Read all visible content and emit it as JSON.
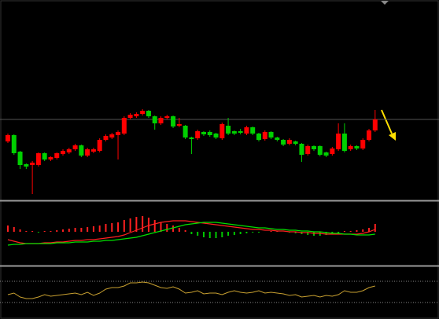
{
  "chart_data": [
    {
      "type": "candlestick",
      "ylim": [
        0,
        255
      ],
      "hline": 103,
      "up_color": "#ff0000",
      "down_color": "#00d000",
      "hline_color": "#555555",
      "open": [
        75,
        83,
        62,
        46,
        45,
        45,
        60,
        52,
        54,
        59,
        61,
        65,
        70,
        57,
        62,
        63,
        77,
        80,
        83,
        85,
        105,
        107,
        110,
        114,
        107,
        98,
        105,
        107,
        95,
        95,
        80,
        79,
        87,
        87,
        85,
        79,
        95,
        88,
        88,
        85,
        93,
        85,
        78,
        87,
        80,
        77,
        72,
        75,
        72,
        59,
        69,
        69,
        61,
        59,
        65,
        85,
        65,
        69,
        66,
        77,
        89
      ],
      "high": [
        85,
        84,
        63,
        47,
        50,
        61,
        61,
        56,
        61,
        65,
        67,
        72,
        71,
        67,
        67,
        79,
        84,
        86,
        89,
        107,
        111,
        112,
        116,
        115,
        108,
        107,
        109,
        108,
        105,
        96,
        81,
        90,
        88,
        89,
        86,
        99,
        105,
        89,
        91,
        95,
        94,
        86,
        89,
        88,
        81,
        78,
        79,
        76,
        73,
        71,
        70,
        70,
        62,
        68,
        98,
        98,
        71,
        70,
        79,
        91,
        115
      ],
      "low": [
        73,
        58,
        40,
        40,
        8,
        43,
        50,
        50,
        52,
        57,
        59,
        63,
        55,
        55,
        60,
        61,
        75,
        78,
        52,
        83,
        103,
        105,
        108,
        105,
        90,
        96,
        103,
        92,
        93,
        78,
        59,
        77,
        82,
        81,
        78,
        77,
        83,
        83,
        84,
        83,
        83,
        75,
        76,
        78,
        75,
        69,
        70,
        70,
        49,
        57,
        63,
        56,
        55,
        57,
        63,
        61,
        63,
        64,
        64,
        75,
        87
      ],
      "close": [
        83,
        60,
        45,
        43,
        48,
        60,
        52,
        55,
        60,
        63,
        65,
        70,
        57,
        65,
        65,
        77,
        82,
        84,
        87,
        105,
        109,
        110,
        114,
        107,
        98,
        105,
        107,
        94,
        97,
        80,
        78,
        88,
        84,
        83,
        80,
        97,
        85,
        85,
        86,
        93,
        85,
        77,
        87,
        80,
        77,
        71,
        77,
        72,
        58,
        69,
        65,
        58,
        57,
        66,
        85,
        63,
        69,
        66,
        77,
        89,
        103
      ]
    },
    {
      "type": "macd",
      "ylim": [
        -43,
        38
      ],
      "up_color": "#ff2020",
      "down_color": "#00c800",
      "histogram": [
        8,
        6,
        3,
        1,
        1,
        -1,
        1,
        1,
        2,
        3,
        4,
        5,
        5,
        6,
        7,
        8,
        10,
        11,
        12,
        15,
        17,
        19,
        20,
        18,
        15,
        12,
        10,
        8,
        5,
        2,
        -3,
        -5,
        -7,
        -8,
        -8,
        -7,
        -5,
        -4,
        -3,
        -2,
        -1,
        -1,
        0,
        1,
        1,
        0,
        -1,
        -2,
        -3,
        -4,
        -5,
        -5,
        -4,
        -3,
        -2,
        1,
        1,
        2,
        3,
        5,
        10
      ],
      "series": [
        {
          "color": "#ff2020",
          "values": [
            -10,
            -12,
            -14,
            -15,
            -15,
            -15,
            -14,
            -14,
            -13,
            -13,
            -12,
            -11,
            -11,
            -10,
            -10,
            -9,
            -8,
            -7,
            -6,
            -4,
            -1,
            2,
            5,
            8,
            10,
            12,
            13,
            14,
            14,
            14,
            13,
            12,
            11,
            10,
            9,
            8,
            7,
            6,
            5,
            4,
            3,
            3,
            2,
            2,
            1,
            1,
            0,
            0,
            -1,
            -1,
            -2,
            -2,
            -3,
            -3,
            -3,
            -3,
            -3,
            -3,
            -2,
            0,
            3
          ]
        },
        {
          "color": "#00e000",
          "values": [
            -17,
            -16,
            -16,
            -15,
            -15,
            -15,
            -15,
            -15,
            -14,
            -14,
            -14,
            -13,
            -13,
            -13,
            -12,
            -12,
            -11,
            -11,
            -10,
            -9,
            -8,
            -7,
            -5,
            -3,
            -1,
            1,
            3,
            5,
            7,
            9,
            10,
            11,
            12,
            12,
            12,
            11,
            10,
            9,
            8,
            7,
            6,
            5,
            5,
            4,
            3,
            3,
            2,
            2,
            1,
            1,
            0,
            0,
            -1,
            -2,
            -2,
            -3,
            -3,
            -4,
            -4,
            -4,
            -3
          ]
        }
      ]
    },
    {
      "type": "line",
      "ylim": [
        0,
        66
      ],
      "hlines": [
        48,
        21
      ],
      "color": "#c8a030",
      "hline_color": "#888888",
      "values": [
        31,
        33,
        28,
        26,
        26,
        28,
        31,
        29,
        30,
        31,
        32,
        33,
        31,
        34,
        30,
        33,
        38,
        40,
        40,
        42,
        46,
        46,
        47,
        46,
        43,
        40,
        39,
        41,
        38,
        33,
        34,
        36,
        32,
        33,
        33,
        31,
        34,
        36,
        34,
        33,
        34,
        36,
        33,
        34,
        33,
        32,
        30,
        31,
        28,
        29,
        30,
        28,
        30,
        29,
        31,
        36,
        34,
        34,
        36,
        40,
        42
      ]
    }
  ]
}
